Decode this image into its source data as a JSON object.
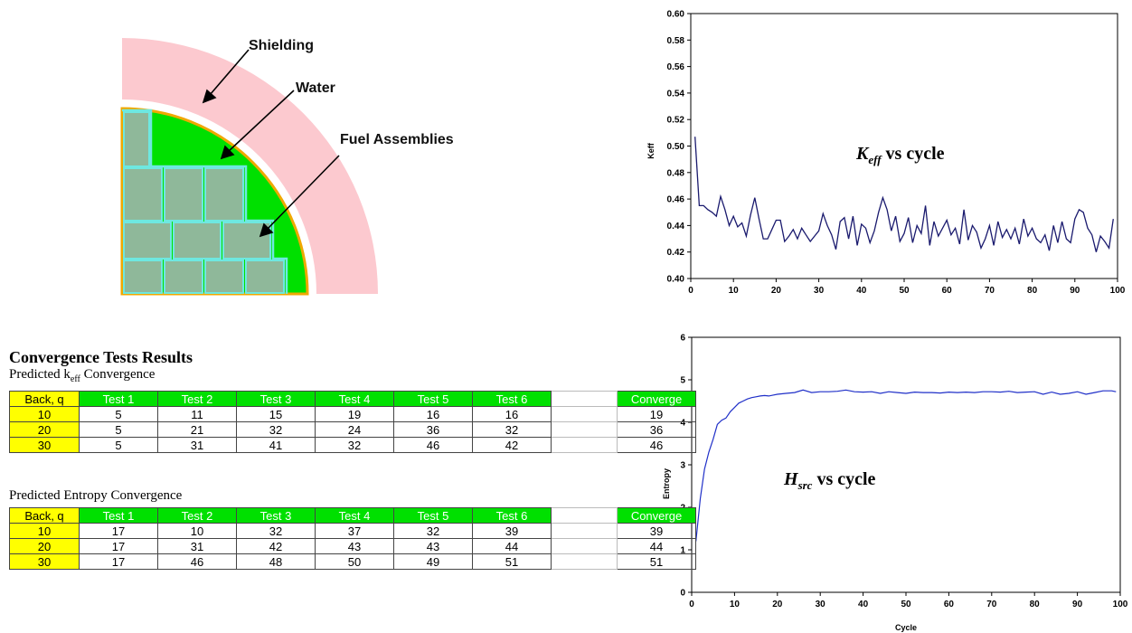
{
  "diagram": {
    "labels": {
      "shielding": "Shielding",
      "water": "Water",
      "fuel": "Fuel Assemblies"
    },
    "colors": {
      "shielding": "#fcc9cf",
      "water": "#00e000",
      "boundary": "#f0a800",
      "fuel": "#8fb89a",
      "fuel_outline": "#6ee8e0"
    }
  },
  "tables": {
    "section_title": "Convergence Tests Results",
    "keff": {
      "caption_prefix": "Predicted k",
      "caption_sub": "eff",
      "caption_suffix": " Convergence",
      "headers": [
        "Back, q",
        "Test 1",
        "Test 2",
        "Test 3",
        "Test 4",
        "Test 5",
        "Test 6",
        "",
        "Converge"
      ],
      "rows": [
        [
          "10",
          "5",
          "11",
          "15",
          "19",
          "16",
          "16",
          "",
          "19"
        ],
        [
          "20",
          "5",
          "21",
          "32",
          "24",
          "36",
          "32",
          "",
          "36"
        ],
        [
          "30",
          "5",
          "31",
          "41",
          "32",
          "46",
          "42",
          "",
          "46"
        ]
      ]
    },
    "entropy": {
      "caption": "Predicted Entropy Convergence",
      "headers": [
        "Back, q",
        "Test 1",
        "Test 2",
        "Test 3",
        "Test 4",
        "Test 5",
        "Test 6",
        "",
        "Converge"
      ],
      "rows": [
        [
          "10",
          "17",
          "10",
          "32",
          "37",
          "32",
          "39",
          "",
          "39"
        ],
        [
          "20",
          "17",
          "31",
          "42",
          "43",
          "43",
          "44",
          "",
          "44"
        ],
        [
          "30",
          "17",
          "46",
          "48",
          "50",
          "49",
          "51",
          "",
          "51"
        ]
      ]
    }
  },
  "chart_data": [
    {
      "type": "line",
      "ylabel": "Keff",
      "xlabel": "",
      "overlay_main": "K",
      "overlay_sub": "eff",
      "overlay_rest": " vs cycle",
      "xlim": [
        0,
        100
      ],
      "ylim": [
        0.4,
        0.6
      ],
      "xticks": [
        0,
        10,
        20,
        30,
        40,
        50,
        60,
        70,
        80,
        90,
        100
      ],
      "yticks": [
        "0.40",
        "0.42",
        "0.44",
        "0.46",
        "0.48",
        "0.50",
        "0.52",
        "0.54",
        "0.56",
        "0.58",
        "0.60"
      ],
      "grid": false,
      "line_color": "#1a1a6e",
      "series": [
        {
          "x": [
            1,
            2,
            3,
            4,
            5,
            6,
            7,
            8,
            9,
            10,
            11,
            12,
            13,
            14,
            15,
            16,
            17,
            18,
            19,
            20,
            21,
            22,
            23,
            24,
            25,
            26,
            27,
            28,
            29,
            30,
            31,
            32,
            33,
            34,
            35,
            36,
            37,
            38,
            39,
            40,
            41,
            42,
            43,
            44,
            45,
            46,
            47,
            48,
            49,
            50,
            51,
            52,
            53,
            54,
            55,
            56,
            57,
            58,
            59,
            60,
            61,
            62,
            63,
            64,
            65,
            66,
            67,
            68,
            69,
            70,
            71,
            72,
            73,
            74,
            75,
            76,
            77,
            78,
            79,
            80,
            81,
            82,
            83,
            84,
            85,
            86,
            87,
            88,
            89,
            90,
            91,
            92,
            93,
            94,
            95,
            96,
            97,
            98,
            99
          ],
          "y": [
            0.507,
            0.455,
            0.455,
            0.452,
            0.45,
            0.447,
            0.462,
            0.452,
            0.44,
            0.447,
            0.439,
            0.442,
            0.432,
            0.448,
            0.461,
            0.445,
            0.43,
            0.43,
            0.437,
            0.444,
            0.444,
            0.428,
            0.432,
            0.437,
            0.43,
            0.438,
            0.433,
            0.428,
            0.432,
            0.436,
            0.449,
            0.44,
            0.433,
            0.422,
            0.443,
            0.446,
            0.43,
            0.447,
            0.425,
            0.441,
            0.438,
            0.427,
            0.436,
            0.45,
            0.461,
            0.452,
            0.436,
            0.447,
            0.428,
            0.434,
            0.446,
            0.427,
            0.44,
            0.434,
            0.455,
            0.425,
            0.443,
            0.432,
            0.438,
            0.444,
            0.433,
            0.438,
            0.426,
            0.452,
            0.429,
            0.44,
            0.435,
            0.423,
            0.43,
            0.44,
            0.425,
            0.443,
            0.431,
            0.437,
            0.43,
            0.438,
            0.426,
            0.445,
            0.432,
            0.438,
            0.43,
            0.427,
            0.433,
            0.421,
            0.44,
            0.427,
            0.443,
            0.43,
            0.427,
            0.445,
            0.452,
            0.45,
            0.438,
            0.433,
            0.42,
            0.432,
            0.428,
            0.423,
            0.445
          ]
        }
      ]
    },
    {
      "type": "line",
      "ylabel": "Entropy",
      "xlabel": "Cycle",
      "overlay_main": "H",
      "overlay_sub": "src",
      "overlay_rest": " vs cycle",
      "xlim": [
        0,
        100
      ],
      "ylim": [
        0,
        6
      ],
      "xticks": [
        0,
        10,
        20,
        30,
        40,
        50,
        60,
        70,
        80,
        90,
        100
      ],
      "yticks": [
        "0",
        "1",
        "2",
        "3",
        "4",
        "5",
        "6"
      ],
      "grid": false,
      "line_color": "#1f2fc8",
      "series": [
        {
          "x": [
            1,
            2,
            3,
            4,
            5,
            6,
            7,
            8,
            9,
            10,
            11,
            12,
            13,
            14,
            15,
            16,
            17,
            18,
            19,
            20,
            22,
            24,
            26,
            28,
            30,
            32,
            34,
            36,
            38,
            40,
            42,
            44,
            46,
            48,
            50,
            52,
            54,
            56,
            58,
            60,
            62,
            64,
            66,
            68,
            70,
            72,
            74,
            76,
            78,
            80,
            82,
            84,
            86,
            88,
            90,
            92,
            94,
            96,
            98,
            99
          ],
          "y": [
            1.2,
            2.2,
            2.9,
            3.3,
            3.6,
            3.95,
            4.05,
            4.1,
            4.25,
            4.35,
            4.45,
            4.5,
            4.55,
            4.58,
            4.6,
            4.62,
            4.63,
            4.62,
            4.64,
            4.66,
            4.68,
            4.7,
            4.76,
            4.7,
            4.72,
            4.72,
            4.73,
            4.76,
            4.72,
            4.71,
            4.72,
            4.68,
            4.72,
            4.7,
            4.68,
            4.71,
            4.7,
            4.7,
            4.69,
            4.71,
            4.7,
            4.71,
            4.7,
            4.72,
            4.72,
            4.71,
            4.73,
            4.7,
            4.71,
            4.72,
            4.66,
            4.71,
            4.66,
            4.68,
            4.72,
            4.66,
            4.7,
            4.74,
            4.74,
            4.72
          ]
        }
      ]
    }
  ]
}
